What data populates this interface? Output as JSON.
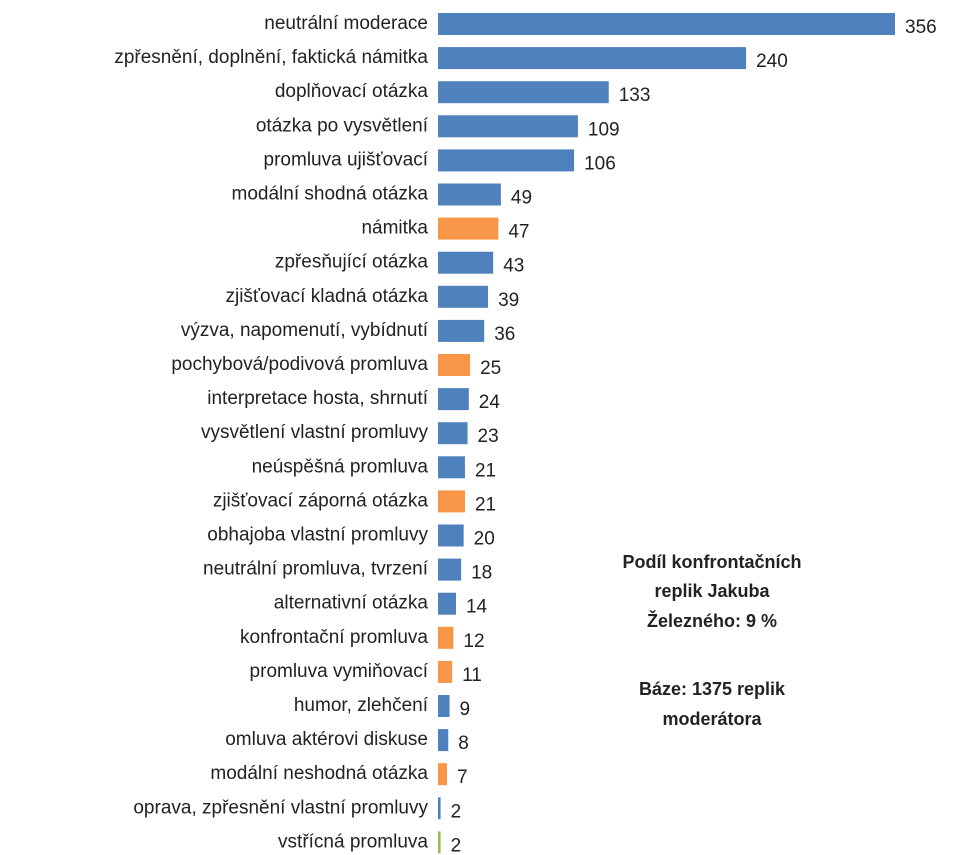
{
  "chart_data": {
    "type": "bar",
    "orientation": "horizontal",
    "categories": [
      "neutrální moderace",
      "zpřesnění, doplnění, faktická námitka",
      "doplňovací otázka",
      "otázka po vysvětlení",
      "promluva ujišťovací",
      "modální shodná otázka",
      "námitka",
      "zpřesňující otázka",
      "zjišťovací kladná otázka",
      "výzva, napomenutí, vybídnutí",
      "pochybová/podivová promluva",
      "interpretace hosta, shrnutí",
      "vysvětlení vlastní promluvy",
      "neúspěšná promluva",
      "zjišťovací záporná otázka",
      "obhajoba vlastní promluvy",
      "neutrální promluva, tvrzení",
      "alternativní otázka",
      "konfrontační promluva",
      "promluva vymiňovací",
      "humor, zlehčení",
      "omluva aktérovi diskuse",
      "modální neshodná otázka",
      "oprava, zpřesnění vlastní promluvy",
      "vstřícná promluva"
    ],
    "values": [
      356,
      240,
      133,
      109,
      106,
      49,
      47,
      43,
      39,
      36,
      25,
      24,
      23,
      21,
      21,
      20,
      18,
      14,
      12,
      11,
      9,
      8,
      7,
      2,
      2
    ],
    "colors": [
      "#4f81bd",
      "#4f81bd",
      "#4f81bd",
      "#4f81bd",
      "#4f81bd",
      "#4f81bd",
      "#f79646",
      "#4f81bd",
      "#4f81bd",
      "#4f81bd",
      "#f79646",
      "#4f81bd",
      "#4f81bd",
      "#4f81bd",
      "#f79646",
      "#4f81bd",
      "#4f81bd",
      "#4f81bd",
      "#f79646",
      "#f79646",
      "#4f81bd",
      "#4f81bd",
      "#f79646",
      "#4f81bd",
      "#9bbb59"
    ],
    "annotation": [
      "Podíl konfrontačních",
      "replik Jakuba",
      "Železného: 9 %",
      "Báze: 1375 replik",
      "moderátora"
    ]
  }
}
